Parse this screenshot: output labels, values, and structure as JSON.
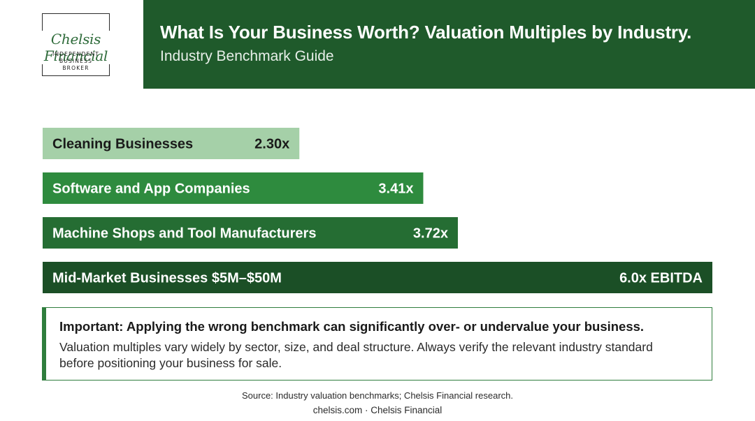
{
  "logo": {
    "script": "Chelsis Financial",
    "line1": "INDEPENDENT",
    "line2": "BUSINESS",
    "line3": "BROKER"
  },
  "header": {
    "title": "What Is Your Business Worth? Valuation Multiples by Industry.",
    "subtitle": "Industry Benchmark Guide"
  },
  "chart_data": {
    "type": "bar",
    "orientation": "horizontal",
    "categories": [
      "Cleaning Businesses",
      "Software and App Companies",
      "Machine Shops and Tool Manufacturers",
      "Mid-Market Businesses $5M–$50M"
    ],
    "values": [
      2.3,
      3.41,
      3.72,
      6.0
    ],
    "value_labels": [
      "2.30x",
      "3.41x",
      "3.72x",
      "6.0x EBITDA"
    ],
    "colors": [
      "#a5d0a8",
      "#2e8b3e",
      "#256d33",
      "#1b4f26"
    ],
    "label_colors": [
      "#1a1a1a",
      "#ffffff",
      "#ffffff",
      "#ffffff"
    ],
    "grid": false
  },
  "note": {
    "title": "Important: Applying the wrong benchmark can significantly over- or undervalue your business.",
    "body": "Valuation multiples vary widely by sector, size, and deal structure. Always verify the relevant industry standard before positioning your business for sale."
  },
  "source": "Source: Industry valuation benchmarks; Chelsis Financial research.",
  "footer": "chelsis.com · Chelsis Financial"
}
